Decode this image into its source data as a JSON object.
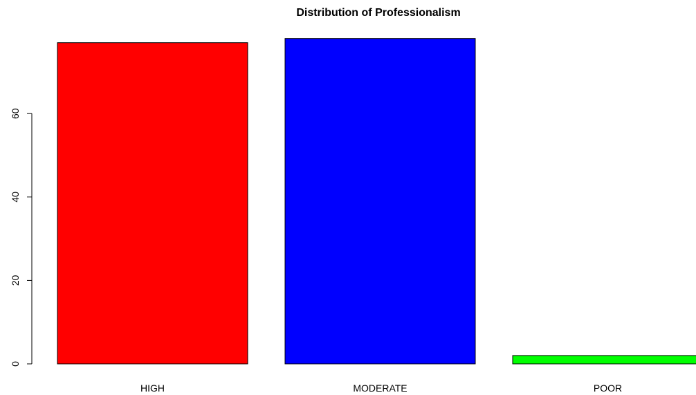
{
  "chart_data": {
    "type": "bar",
    "title": "Distribution of Professionalism",
    "xlabel": "",
    "ylabel": "",
    "categories": [
      "HIGH",
      "MODERATE",
      "POOR"
    ],
    "values": [
      77,
      78,
      2
    ],
    "colors": [
      "#ff0000",
      "#0000ff",
      "#00ff00"
    ],
    "yticks": [
      0,
      20,
      40,
      60
    ],
    "ylim": [
      0,
      78
    ],
    "grid": false,
    "legend": "none"
  }
}
